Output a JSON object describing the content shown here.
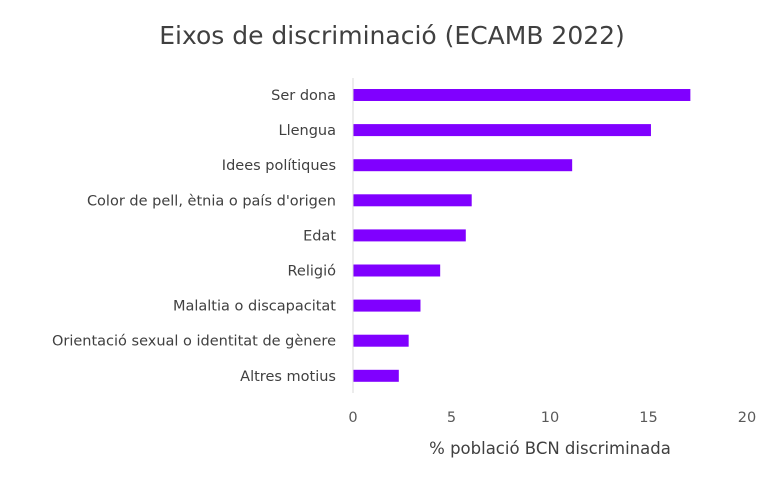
{
  "chart_data": {
    "type": "bar",
    "orientation": "horizontal",
    "title": "Eixos de discriminació (ECAMB 2022)",
    "xlabel": "% població BCN discriminada",
    "ylabel": "",
    "categories": [
      "Ser dona",
      "Llengua",
      "Idees polítiques",
      "Color de pell, ètnia o país d'origen",
      "Edat",
      "Religió",
      "Malaltia o discapacitat",
      "Orientació sexual o identitat de gènere",
      "Altres motius"
    ],
    "values": [
      17.1,
      15.1,
      11.1,
      6.0,
      5.7,
      4.4,
      3.4,
      2.8,
      2.3
    ],
    "xlim": [
      0,
      20
    ],
    "xticks": [
      "0",
      "5",
      "10",
      "15",
      "20"
    ],
    "xtick_values": [
      0,
      5,
      10,
      15,
      20
    ],
    "grid": false,
    "legend": "none",
    "colors": {
      "bar": "#8000FF",
      "axis": "#D9D9D9",
      "text": "#404040"
    }
  }
}
